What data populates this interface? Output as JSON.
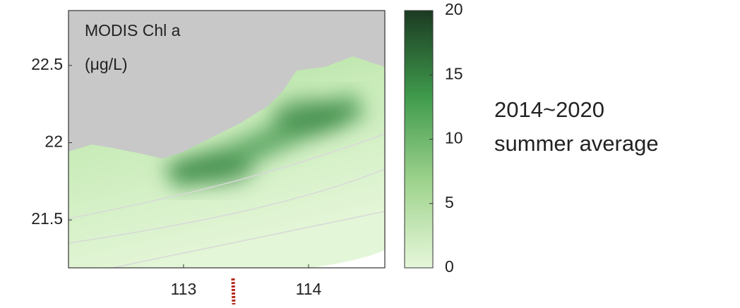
{
  "map": {
    "label": [
      "MODIS Chl a",
      "(μg/L)"
    ],
    "xlim": [
      112.08,
      114.61
    ],
    "ylim": [
      21.19,
      22.855
    ],
    "xticks": [
      113,
      114
    ],
    "yticks": [
      21.5,
      22,
      22.5
    ]
  },
  "colorbar": {
    "lim": [
      0,
      20
    ],
    "ticks": [
      0,
      5,
      10,
      15,
      20
    ],
    "colors": [
      "#e6f7da",
      "#9fd38e",
      "#3f9a4c",
      "#1b3a22"
    ]
  },
  "annotation": [
    "2014~2020",
    "summer average"
  ]
}
